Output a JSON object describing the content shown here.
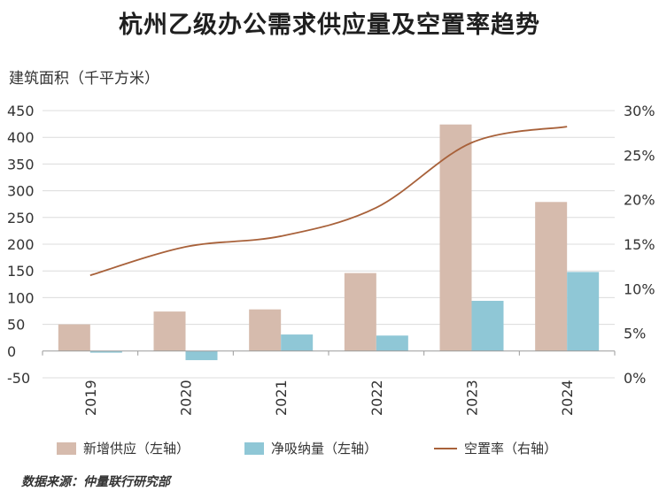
{
  "title": "杭州乙级办公需求供应量及空置率趋势",
  "source": "数据来源：仲量联行研究部",
  "colors": {
    "supply": "#d6bbad",
    "absorption": "#8fc7d6",
    "vacancy": "#a8613a",
    "grid": "#dcdcdc"
  },
  "chart_data": {
    "type": "bar",
    "title": "杭州乙级办公需求供应量及空置率趋势",
    "ylabel": "建筑面积（千平方米）",
    "categories": [
      "2019",
      "2020",
      "2021",
      "2022",
      "2023",
      "2024"
    ],
    "ylim": [
      -50,
      450
    ],
    "yticks": [
      "450",
      "400",
      "350",
      "300",
      "250",
      "200",
      "150",
      "100",
      "50",
      "0",
      "-50"
    ],
    "y2lim": [
      0,
      30
    ],
    "y2ticks": [
      "30%",
      "25%",
      "20%",
      "15%",
      "10%",
      "5%",
      "0%"
    ],
    "series": [
      {
        "name": "新增供应（左轴）",
        "axis": "left",
        "kind": "bar",
        "values": [
          50,
          74,
          78,
          146,
          424,
          279
        ]
      },
      {
        "name": "净吸纳量（左轴）",
        "axis": "left",
        "kind": "bar",
        "values": [
          -3,
          -17,
          31,
          29,
          94,
          148
        ]
      },
      {
        "name": "空置率（右轴）",
        "axis": "right",
        "kind": "line",
        "values": [
          11.5,
          14.7,
          15.9,
          19.1,
          26.4,
          28.2
        ]
      }
    ]
  }
}
